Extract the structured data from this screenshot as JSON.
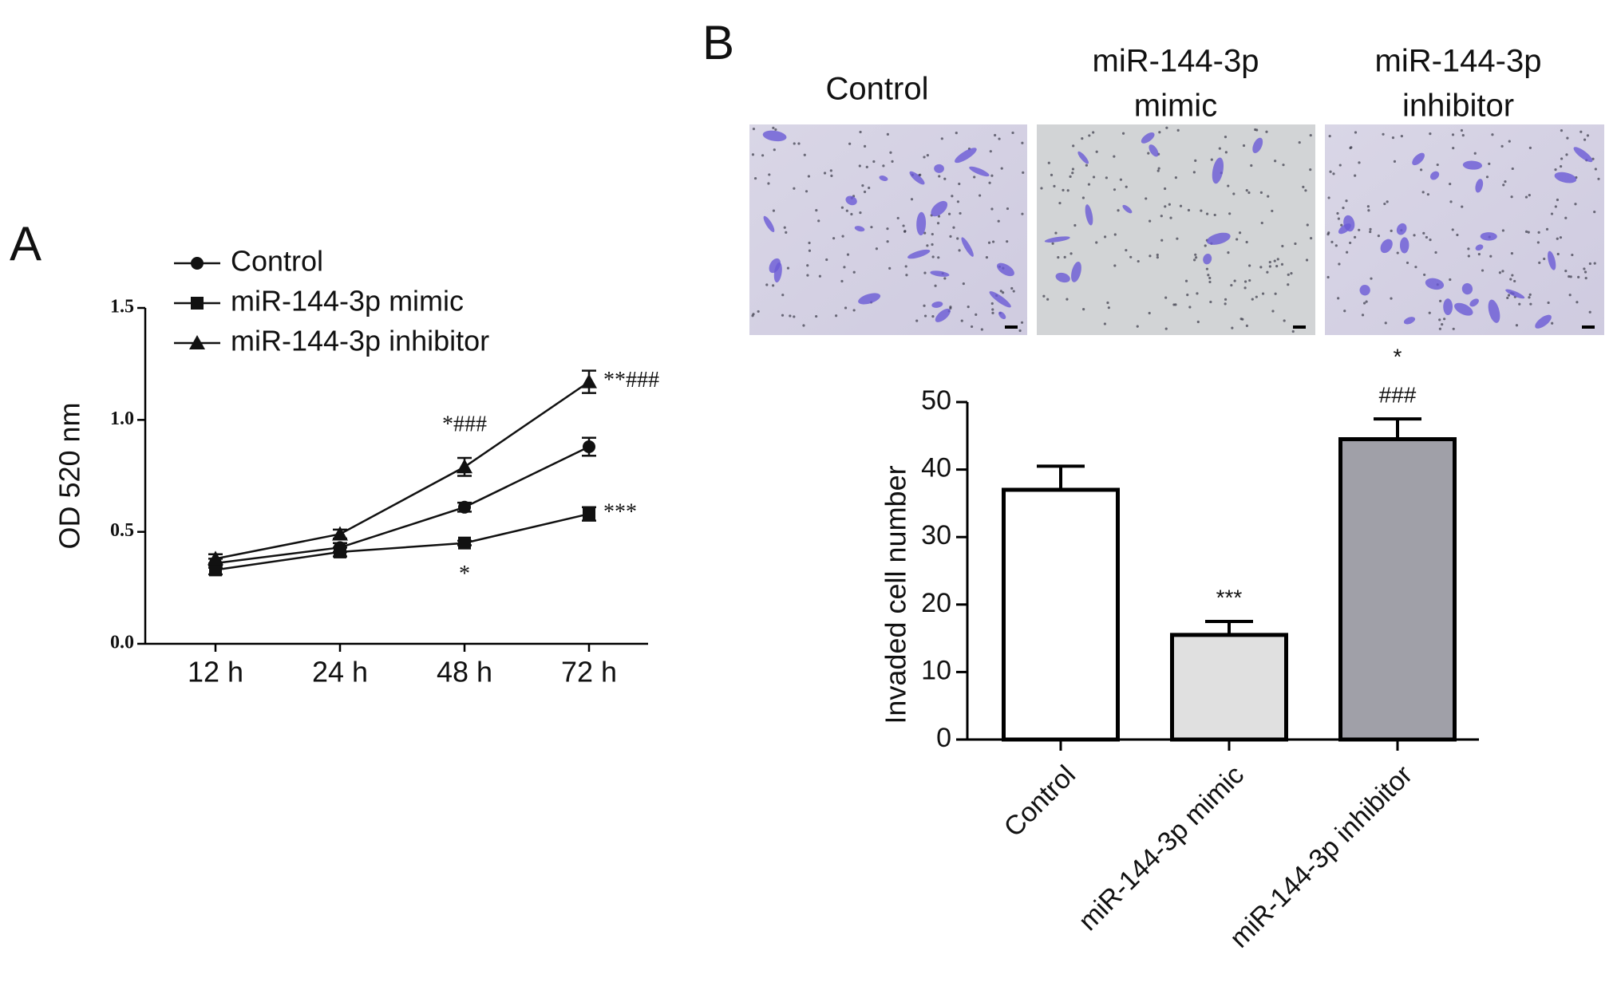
{
  "chart_data": [
    {
      "type": "line",
      "panel_label": "A",
      "ylabel": "OD 520 nm",
      "categories": [
        "12 h",
        "24 h",
        "48 h",
        "72 h"
      ],
      "ylim": [
        0,
        1.5
      ],
      "yticks": [
        {
          "value": 0,
          "label": "0.0"
        },
        0.5,
        {
          "value": 1,
          "label": "1.0"
        },
        1.5
      ],
      "series": [
        {
          "name": "Control",
          "marker": "circle",
          "color": "#111111",
          "values": [
            0.36,
            0.43,
            0.61,
            0.88
          ],
          "errors": [
            0.02,
            0.02,
            0.02,
            0.04
          ]
        },
        {
          "name": "miR-144-3p mimic",
          "marker": "square",
          "color": "#111111",
          "values": [
            0.33,
            0.41,
            0.45,
            0.58
          ],
          "errors": [
            0.02,
            0.02,
            0.01,
            0.03
          ],
          "annotations": [
            null,
            null,
            "*",
            "***"
          ]
        },
        {
          "name": "miR-144-3p inhibitor",
          "marker": "triangle",
          "color": "#111111",
          "values": [
            0.38,
            0.49,
            0.79,
            1.17
          ],
          "errors": [
            0.02,
            0.02,
            0.04,
            0.05
          ],
          "annotations": [
            null,
            null,
            "*###",
            "**###"
          ]
        }
      ]
    },
    {
      "type": "bar",
      "panel_label": "B",
      "ylabel": "Invaded cell number",
      "image_titles": [
        [
          "Control"
        ],
        [
          "miR-144-3p",
          "mimic"
        ],
        [
          "miR-144-3p",
          "inhibitor"
        ]
      ],
      "categories": [
        "Control",
        "miR-144-3p mimic",
        "miR-144-3p inhibitor"
      ],
      "values": [
        37,
        15.5,
        44.5
      ],
      "errors": [
        3.5,
        2,
        3
      ],
      "colors": [
        "#ffffff",
        "#e0e0e0",
        "#a0a0a8"
      ],
      "annotations": [
        null,
        [
          "***"
        ],
        [
          "*",
          "###"
        ]
      ],
      "ylim": [
        0,
        50
      ],
      "yticks": [
        0,
        10,
        20,
        30,
        40,
        50
      ]
    }
  ]
}
